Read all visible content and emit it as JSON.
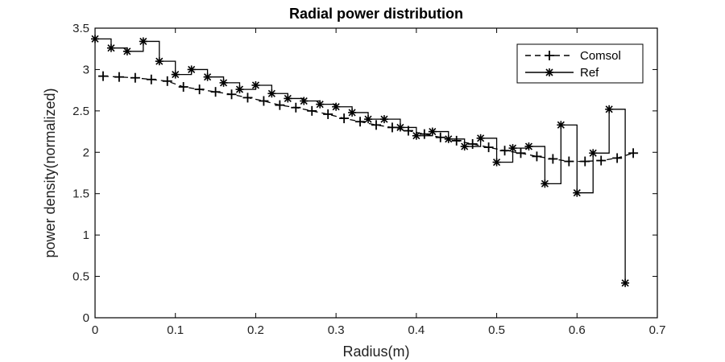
{
  "chart_data": {
    "type": "line",
    "title": "Radial power distribution",
    "xlabel": "Radius(m)",
    "ylabel": "power density(normalized)",
    "xlim": [
      0,
      0.7
    ],
    "ylim": [
      0,
      3.5
    ],
    "xticks": [
      "0",
      "0.1",
      "0.2",
      "0.3",
      "0.4",
      "0.5",
      "0.6",
      "0.7"
    ],
    "yticks": [
      "0",
      "0.5",
      "1",
      "1.5",
      "2",
      "2.5",
      "3",
      "3.5"
    ],
    "grid": false,
    "legend_position": "top-right",
    "series": [
      {
        "name": "Comsol",
        "style": "dashed",
        "marker": "+",
        "x": [
          0.01,
          0.03,
          0.05,
          0.07,
          0.09,
          0.11,
          0.13,
          0.15,
          0.17,
          0.19,
          0.21,
          0.23,
          0.25,
          0.27,
          0.29,
          0.31,
          0.33,
          0.35,
          0.37,
          0.39,
          0.41,
          0.43,
          0.45,
          0.47,
          0.49,
          0.51,
          0.53,
          0.55,
          0.57,
          0.59,
          0.61,
          0.63,
          0.65,
          0.67
        ],
        "y": [
          2.92,
          2.91,
          2.9,
          2.88,
          2.86,
          2.79,
          2.76,
          2.73,
          2.7,
          2.66,
          2.62,
          2.57,
          2.54,
          2.5,
          2.46,
          2.41,
          2.37,
          2.33,
          2.3,
          2.26,
          2.22,
          2.18,
          2.14,
          2.1,
          2.06,
          2.02,
          1.99,
          1.95,
          1.92,
          1.89,
          1.89,
          1.9,
          1.93,
          1.99
        ]
      },
      {
        "name": "Ref",
        "style": "step",
        "marker": "*",
        "x": [
          0.0,
          0.02,
          0.04,
          0.06,
          0.08,
          0.1,
          0.12,
          0.14,
          0.16,
          0.18,
          0.2,
          0.22,
          0.24,
          0.26,
          0.28,
          0.3,
          0.32,
          0.34,
          0.36,
          0.38,
          0.4,
          0.42,
          0.44,
          0.46,
          0.48,
          0.5,
          0.52,
          0.54,
          0.56,
          0.58,
          0.6,
          0.62,
          0.64,
          0.66
        ],
        "y": [
          3.37,
          3.26,
          3.22,
          3.34,
          3.1,
          2.94,
          3.0,
          2.91,
          2.84,
          2.76,
          2.81,
          2.71,
          2.65,
          2.62,
          2.58,
          2.55,
          2.48,
          2.4,
          2.4,
          2.3,
          2.2,
          2.25,
          2.16,
          2.07,
          2.17,
          1.88,
          2.05,
          2.07,
          1.62,
          2.33,
          1.51,
          1.99,
          2.52,
          0.42
        ],
        "step_end_x": 0.66
      }
    ]
  }
}
